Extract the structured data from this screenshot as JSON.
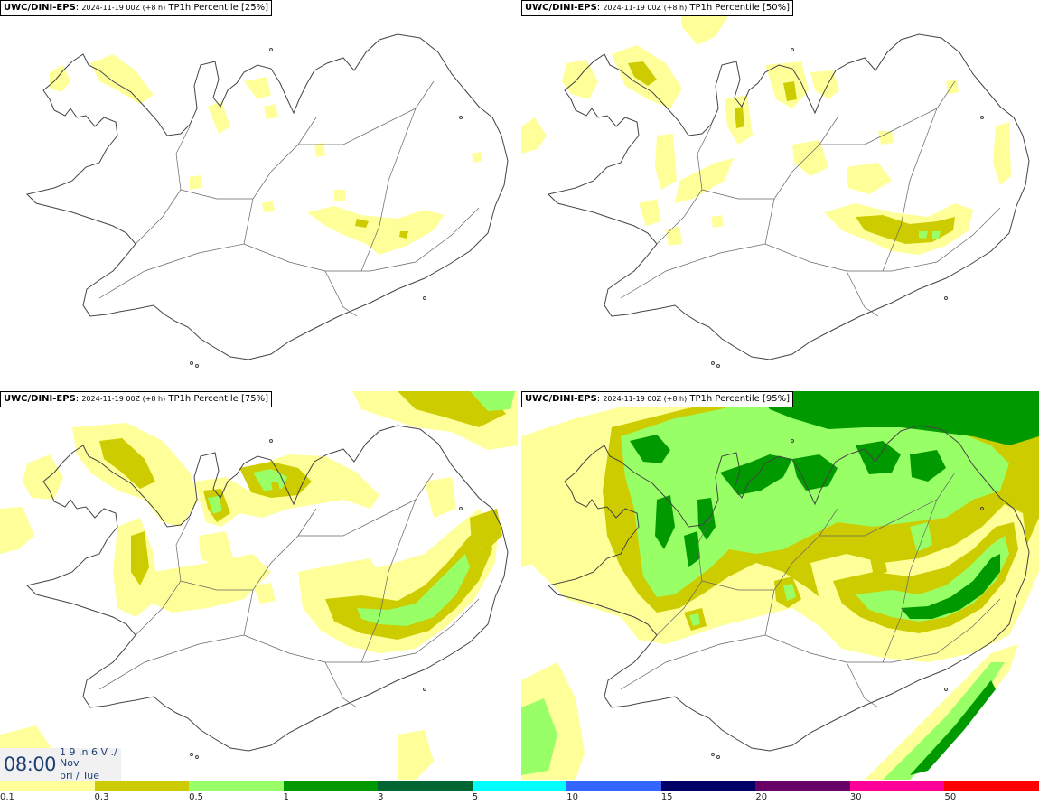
{
  "panels": [
    {
      "model": "UWC/DINI-EPS",
      "sep": ":",
      "run": "2024-11-19 00Z (+8 h)",
      "field": "TP1h Percentile [25%]"
    },
    {
      "model": "UWC/DINI-EPS",
      "sep": ":",
      "run": "2024-11-19 00Z (+8 h)",
      "field": "TP1h Percentile [50%]"
    },
    {
      "model": "UWC/DINI-EPS",
      "sep": ":",
      "run": "2024-11-19 00Z (+8 h)",
      "field": "TP1h Percentile [75%]"
    },
    {
      "model": "UWC/DINI-EPS",
      "sep": ":",
      "run": "2024-11-19 00Z (+8 h)",
      "field": "TP1h Percentile [95%]"
    }
  ],
  "time": {
    "clock": "08:00",
    "top": "1 9 .n 6 V ./",
    "month": "Nov",
    "day": "þri / Tue"
  },
  "legend": {
    "colors": [
      "#ffff99",
      "#cccc00",
      "#99ff66",
      "#009900",
      "#006633",
      "#00ffff",
      "#3366ff",
      "#000066",
      "#660066",
      "#ff0099",
      "#ff0000"
    ],
    "ticks": [
      "0.1",
      "0.3",
      "0.5",
      "1",
      "3",
      "5",
      "10",
      "15",
      "20",
      "30",
      "50"
    ]
  },
  "palette": {
    "light": "#ffff99",
    "olive": "#cccc00",
    "lgreen": "#99ff66",
    "green": "#009900",
    "coast": "#444444"
  }
}
